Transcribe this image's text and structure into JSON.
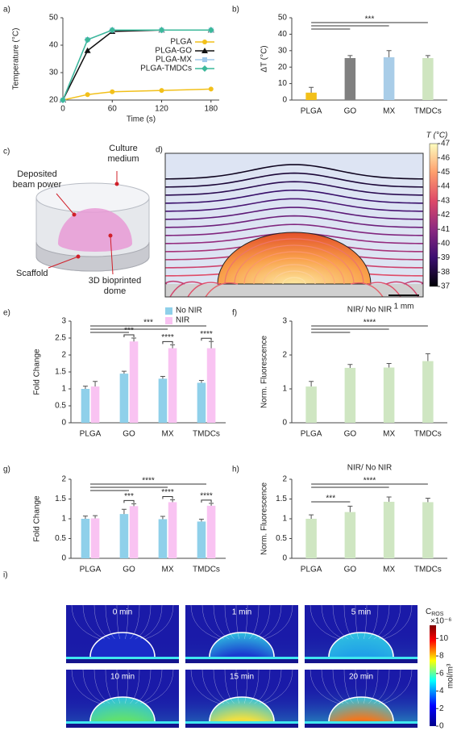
{
  "chart_data": [
    {
      "panel": "a)",
      "type": "line",
      "x": [
        0,
        30,
        60,
        120,
        180
      ],
      "xlim": [
        0,
        190
      ],
      "xticks": [
        0,
        60,
        120,
        180
      ],
      "ylim": [
        20,
        50
      ],
      "yticks": [
        20,
        30,
        40,
        50
      ],
      "xlabel": "Time (s)",
      "ylabel": "Temperature (°C)",
      "legend": "right",
      "series": [
        {
          "name": "PLGA",
          "color": "#f2c01a",
          "marker": "circle",
          "values": [
            20,
            22,
            23,
            23.5,
            24
          ]
        },
        {
          "name": "PLGA-GO",
          "color": "#111111",
          "marker": "triangle",
          "values": [
            20,
            38,
            45,
            45.5,
            45.5
          ]
        },
        {
          "name": "PLGA-MX",
          "color": "#9fc8ea",
          "marker": "square",
          "values": [
            20,
            42,
            45.5,
            45.5,
            45.5
          ]
        },
        {
          "name": "PLGA-TMDCs",
          "color": "#3cb89a",
          "marker": "diamond",
          "values": [
            20,
            42,
            45.5,
            45.5,
            45.5
          ]
        }
      ]
    },
    {
      "panel": "b)",
      "type": "bar",
      "categories": [
        "PLGA",
        "GO",
        "MX",
        "TMDCs"
      ],
      "ylim": [
        0,
        50
      ],
      "yticks": [
        0,
        10,
        20,
        30,
        40,
        50
      ],
      "ylabel": "ΔT (°C)",
      "series": [
        {
          "values": [
            4.5,
            25.5,
            26,
            25.5
          ],
          "errors": [
            3.2,
            1.5,
            4,
            1.5
          ],
          "colors": [
            "#f2c01a",
            "#808080",
            "#a9cde8",
            "#cfe5c0"
          ]
        }
      ],
      "brackets": [
        {
          "from": "PLGA",
          "to": [
            "TMDCs",
            "MX",
            "GO"
          ],
          "label": "***"
        }
      ]
    },
    {
      "panel": "e)",
      "type": "grouped_bar",
      "categories": [
        "PLGA",
        "GO",
        "MX",
        "TMDCs"
      ],
      "ylim": [
        0,
        3
      ],
      "yticks": [
        0,
        0.5,
        1,
        1.5,
        2,
        2.5,
        3
      ],
      "ylabel": "Fold Change",
      "legend": "top",
      "series": [
        {
          "name": "No NIR",
          "color": "#8fd0ea",
          "values": [
            1,
            1.45,
            1.3,
            1.18
          ],
          "errors": [
            0.08,
            0.07,
            0.07,
            0.07
          ]
        },
        {
          "name": "NIR",
          "color": "#f9c3f2",
          "values": [
            1.07,
            2.4,
            2.2,
            2.2
          ],
          "errors": [
            0.15,
            0.1,
            0.1,
            0.2
          ]
        }
      ],
      "brackets": [
        {
          "from": "PLGA",
          "to": [
            "TMDCs",
            "MX",
            "GO"
          ],
          "label": "***"
        }
      ],
      "pair_labels": [
        null,
        "***",
        "****",
        "****"
      ]
    },
    {
      "panel": "f)",
      "type": "bar",
      "title": "NIR/ No NIR",
      "categories": [
        "PLGA",
        "GO",
        "MX",
        "TMDCs"
      ],
      "ylim": [
        0,
        3
      ],
      "yticks": [
        0,
        1,
        2,
        3
      ],
      "ylabel": "Norm. Fluorescence",
      "series": [
        {
          "color": "#cfe6c2",
          "values": [
            1.07,
            1.62,
            1.63,
            1.82
          ],
          "errors": [
            0.15,
            0.1,
            0.12,
            0.22
          ]
        }
      ],
      "brackets": [
        {
          "from": "PLGA",
          "to": [
            "TMDCs",
            "MX",
            "GO"
          ],
          "label": "****"
        }
      ]
    },
    {
      "panel": "g)",
      "type": "grouped_bar",
      "categories": [
        "PLGA",
        "GO",
        "MX",
        "TMDCs"
      ],
      "ylim": [
        0,
        2
      ],
      "yticks": [
        0,
        0.5,
        1,
        1.5,
        2
      ],
      "ylabel": "Fold Change",
      "series": [
        {
          "color": "#8fd0ea",
          "values": [
            1,
            1.12,
            0.99,
            0.93
          ],
          "errors": [
            0.07,
            0.12,
            0.07,
            0.06
          ]
        },
        {
          "color": "#f9c3f2",
          "values": [
            1.01,
            1.32,
            1.42,
            1.33
          ],
          "errors": [
            0.07,
            0.06,
            0.06,
            0.06
          ]
        }
      ],
      "brackets": [
        {
          "from": "PLGA",
          "to": [
            "TMDCs",
            "MX",
            "GO"
          ],
          "label": "****"
        }
      ],
      "pair_labels": [
        null,
        "***",
        "****",
        "****"
      ]
    },
    {
      "panel": "h)",
      "type": "bar",
      "title": "NIR/ No NIR",
      "categories": [
        "PLGA",
        "GO",
        "MX",
        "TMDCs"
      ],
      "ylim": [
        0,
        2
      ],
      "yticks": [
        0,
        0.5,
        1,
        1.5,
        2
      ],
      "ylabel": "Norm. Fluorescence",
      "series": [
        {
          "color": "#cfe6c2",
          "values": [
            1.0,
            1.17,
            1.43,
            1.42
          ],
          "errors": [
            0.1,
            0.15,
            0.12,
            0.1
          ]
        }
      ],
      "brackets": [
        {
          "from": "PLGA",
          "to": [
            "TMDCs",
            "MX"
          ],
          "label": "****"
        },
        {
          "from": "PLGA",
          "to": [
            "GO"
          ],
          "label": "***"
        }
      ]
    }
  ],
  "diagram": {
    "panel": "c)",
    "culture_medium": "Culture medium",
    "deposited_beam_power": "Deposited beam power",
    "scaffold": "Scaffold",
    "dome": "3D bioprinted dome"
  },
  "contour_map": {
    "panel": "d)",
    "colorbar_title": "T (°C)",
    "colorbar_lim": [
      37,
      47
    ],
    "colorbar_ticks": [
      37,
      38,
      39,
      40,
      41,
      42,
      43,
      44,
      45,
      46,
      47
    ],
    "scale_bar": "1 mm"
  },
  "ros_maps": {
    "panel": "i)",
    "panels": [
      "0 min",
      "1 min",
      "5 min",
      "10 min",
      "15 min",
      "20 min"
    ],
    "colorbar_title": "C",
    "colorbar_title_sub": "ROS",
    "colorbar_multiplier": "×10⁻⁶",
    "colorbar_unit": "mol/m³",
    "colorbar_lim": [
      0,
      11.5
    ],
    "colorbar_ticks": [
      0,
      2,
      4,
      6,
      8,
      10
    ]
  }
}
